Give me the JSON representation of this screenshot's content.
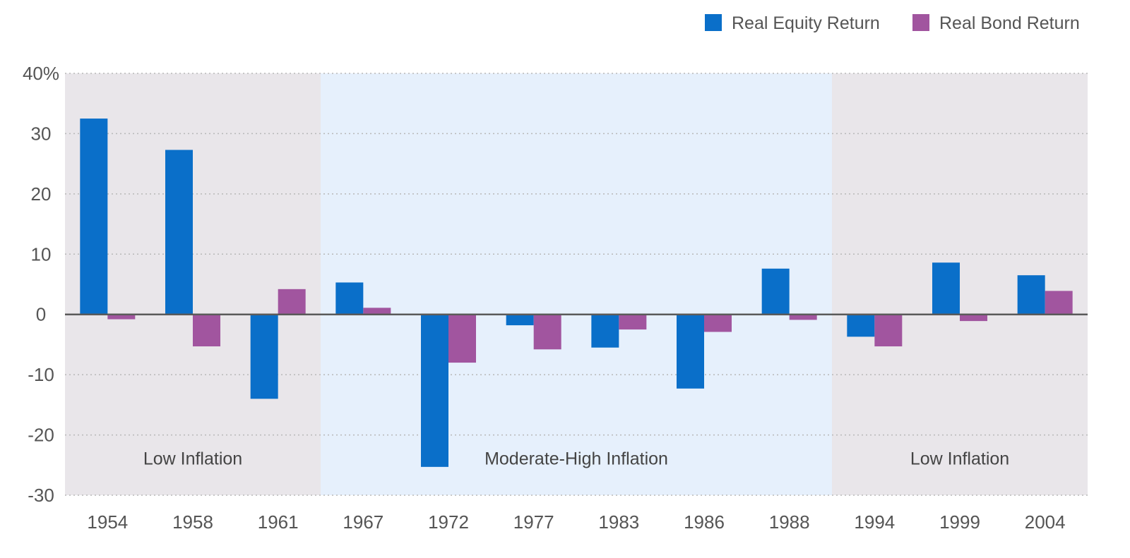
{
  "chart_data": {
    "type": "bar",
    "title": "",
    "xlabel": "",
    "ylabel": "",
    "ylim": [
      -30,
      40
    ],
    "y_ticks": [
      -30,
      -20,
      -10,
      0,
      10,
      20,
      30,
      40
    ],
    "y_tick_labels": [
      "-30",
      "-20",
      "-10",
      "0",
      "10",
      "20",
      "30",
      "40%"
    ],
    "grid": "horizontal dotted",
    "legend_position": "top-right",
    "categories": [
      "1954",
      "1958",
      "1961",
      "1967",
      "1972",
      "1977",
      "1983",
      "1986",
      "1988",
      "1994",
      "1999",
      "2004"
    ],
    "series": [
      {
        "name": "Real Equity Return",
        "color": "#0a6fc9",
        "values": [
          32.5,
          27.3,
          -14.0,
          5.3,
          -25.3,
          -1.8,
          -5.5,
          -12.3,
          7.6,
          -3.7,
          8.6,
          6.5
        ]
      },
      {
        "name": "Real Bond Return",
        "color": "#a1559f",
        "values": [
          -0.8,
          -5.3,
          4.2,
          1.1,
          -8.0,
          -5.8,
          -2.5,
          -2.9,
          -0.9,
          -5.3,
          -1.1,
          3.9
        ]
      }
    ],
    "regions": [
      {
        "label": "Low Inflation",
        "from_category": "1954",
        "to_category": "1961",
        "color": "#e9e6ea"
      },
      {
        "label": "Moderate-High Inflation",
        "from_category": "1967",
        "to_category": "1988",
        "color": "#e6f0fc"
      },
      {
        "label": "Low Inflation",
        "from_category": "1994",
        "to_category": "2004",
        "color": "#e9e6ea"
      }
    ]
  }
}
